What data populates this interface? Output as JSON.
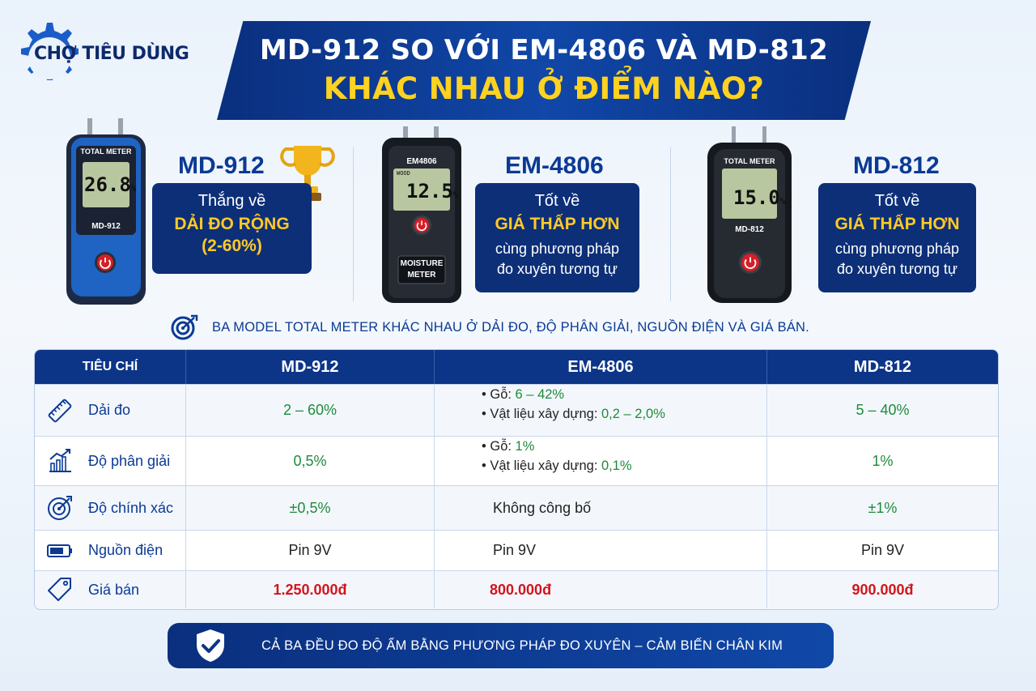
{
  "brand": {
    "name": "CHỢ TIÊU DÙNG"
  },
  "headline": {
    "line1": "MD-912 SO VỚI EM-4806 VÀ MD-812",
    "line2": "KHÁC NHAU Ở ĐIỂM NÀO?"
  },
  "products": [
    {
      "name": "MD-912",
      "device_header": "TOTAL METER",
      "device_reading": "26.8",
      "device_unit": "%",
      "device_model": "MD-912",
      "box_line1": "Thắng về",
      "box_line2": "DẢI ĐO RỘNG",
      "box_line3": "(2-60%)",
      "badge": "trophy-icon"
    },
    {
      "name": "EM-4806",
      "device_header": "EM4806",
      "device_small": "WOOD",
      "device_reading": "12.5",
      "device_unit": "%",
      "device_model_l1": "MOISTURE",
      "device_model_l2": "METER",
      "box_line1": "Tốt về",
      "box_line2": "GIÁ THẤP HƠN",
      "box_line3": "cùng phương pháp",
      "box_line4": "đo xuyên tương tự"
    },
    {
      "name": "MD-812",
      "device_header": "TOTAL METER",
      "device_reading": "15.0",
      "device_unit": "%",
      "device_model": "MD-812",
      "box_line1": "Tốt về",
      "box_line2": "GIÁ THẤP HƠN",
      "box_line3": "cùng phương pháp",
      "box_line4": "đo xuyên tương tự"
    }
  ],
  "subtitle": "BA MODEL TOTAL METER KHÁC NHAU Ở DẢI ĐO, ĐỘ PHÂN GIẢI, NGUỒN ĐIỆN VÀ GIÁ BÁN.",
  "table": {
    "headers": [
      "TIÊU CHÍ",
      "MD-912",
      "EM-4806",
      "MD-812"
    ],
    "rows": [
      {
        "criterion": "Dải đo",
        "icon": "ruler-icon",
        "md912": "2 – 60%",
        "em4806": [
          {
            "label": "• Gỗ: ",
            "value": "6 – 42%"
          },
          {
            "label": "• Vật liệu xây dựng: ",
            "value": "0,2 – 2,0%"
          }
        ],
        "md812": "5 – 40%"
      },
      {
        "criterion": "Độ phân giải",
        "icon": "chart-growth-icon",
        "md912": "0,5%",
        "em4806": [
          {
            "label": "• Gỗ: ",
            "value": "1%"
          },
          {
            "label": "• Vật liệu xây dựng: ",
            "value": "0,1%"
          }
        ],
        "md812": "1%"
      },
      {
        "criterion": "Độ chính xác",
        "icon": "target-icon",
        "md912": "±0,5%",
        "em4806_text": "Không công bố",
        "md812": "±1%"
      },
      {
        "criterion": "Nguồn điện",
        "icon": "battery-icon",
        "md912": "Pin 9V",
        "em4806_text": "Pin 9V",
        "md812": "Pin 9V"
      },
      {
        "criterion": "Giá bán",
        "icon": "price-tag-icon",
        "md912": "1.250.000đ",
        "em4806_text": "800.000đ",
        "md812": "900.000đ"
      }
    ]
  },
  "footer": "CẢ BA ĐỀU ĐO ĐỘ ẨM BẰNG PHƯƠNG PHÁP ĐO XUYÊN – CẢM BIẾN CHÂN KIM",
  "colors": {
    "navy": "#0c2f78",
    "accent_yellow": "#ffc928",
    "green_value": "#1f8a3a",
    "red_price": "#d3141c"
  }
}
